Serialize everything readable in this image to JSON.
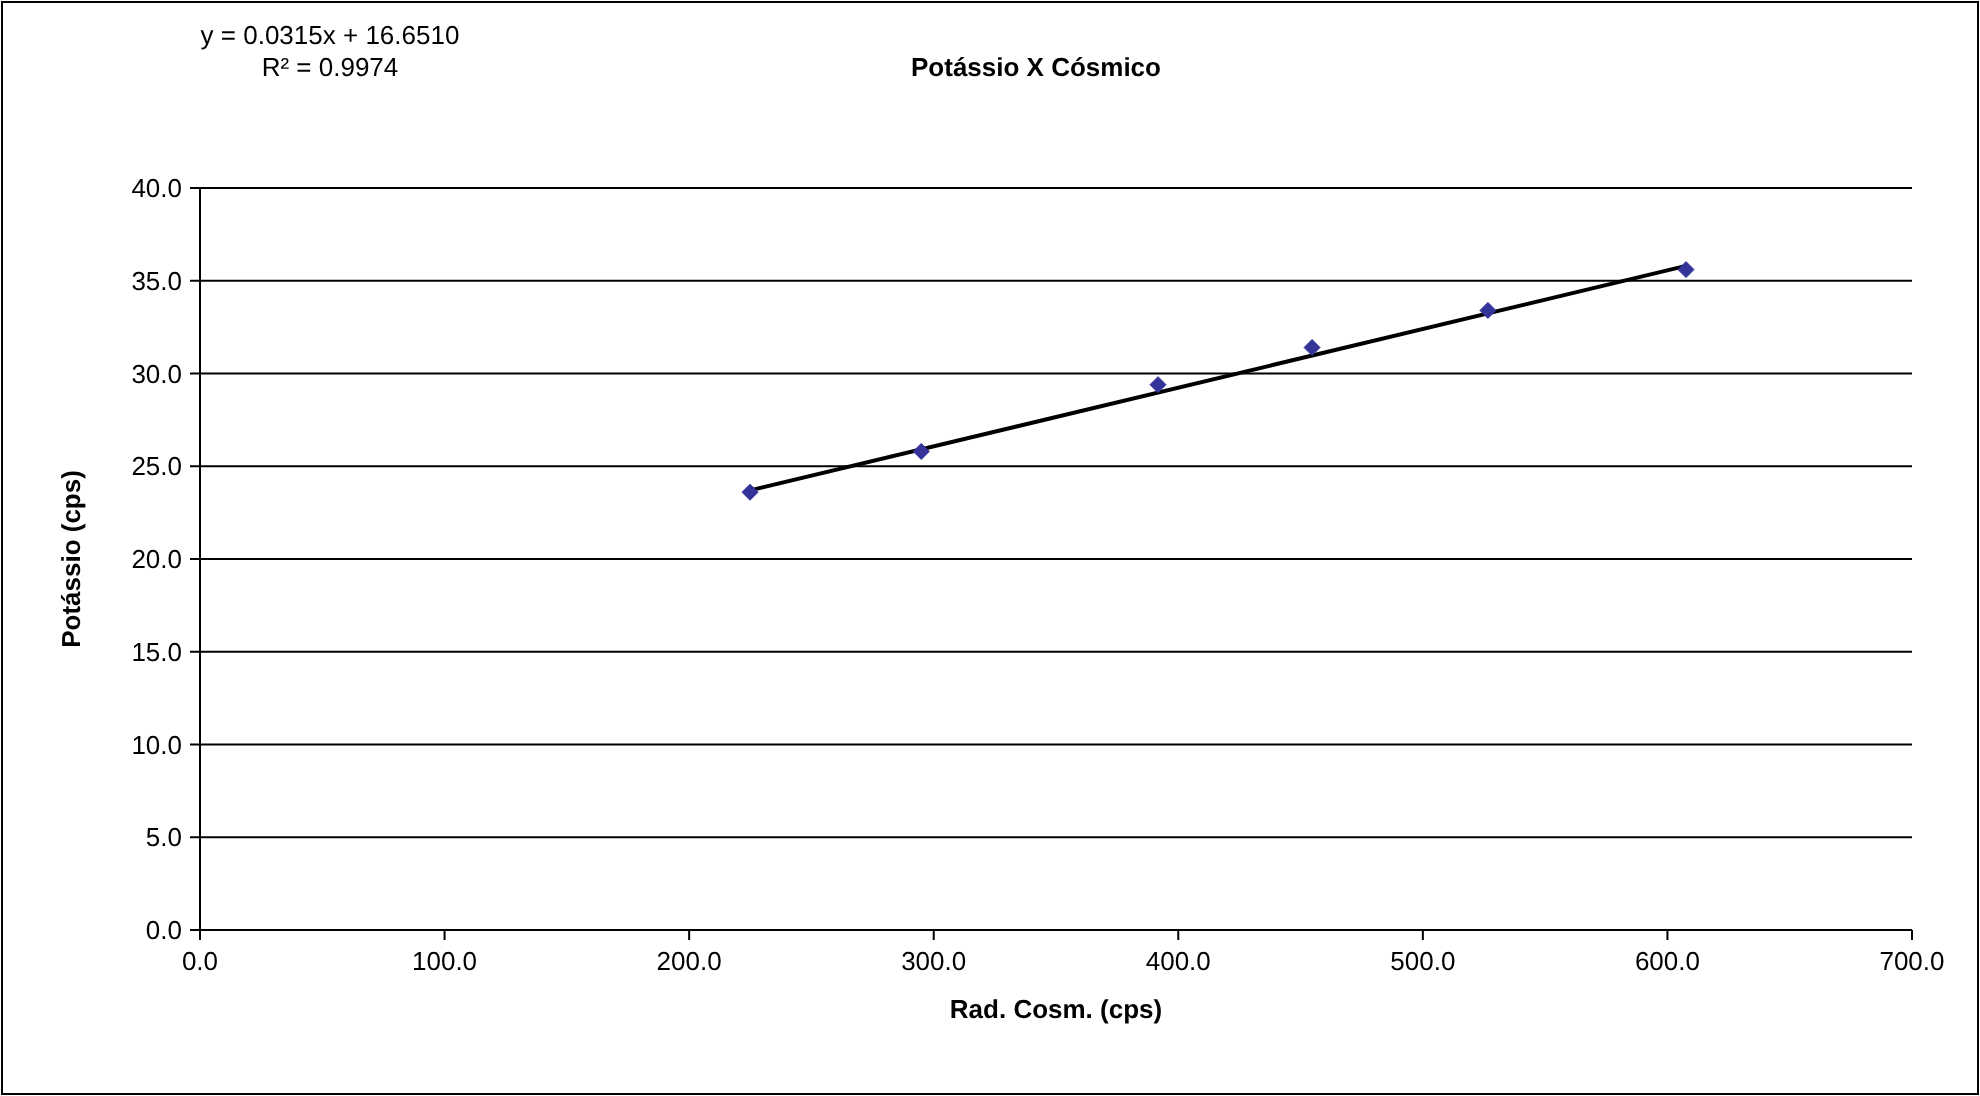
{
  "chart_data": {
    "type": "scatter",
    "title": "Potássio X Cósmico",
    "xlabel": "Rad. Cosm. (cps)",
    "ylabel": "Potássio (cps)",
    "annotations": [
      "y = 0.0315x + 16.6510",
      "R² = 0.9974"
    ],
    "series": [
      {
        "type": "scatter",
        "color": "#333399",
        "x": [
          224.9,
          294.9,
          391.7,
          454.7,
          526.6,
          607.6
        ],
        "values": [
          23.6,
          25.8,
          29.4,
          31.4,
          33.4,
          35.6
        ],
        "marker": "diamond"
      },
      {
        "type": "line",
        "color": "#000000",
        "x": [
          224.9,
          607.6
        ],
        "values": [
          23.7,
          35.8
        ],
        "marker": "none",
        "line_style": "solid"
      }
    ],
    "xlim": [
      0,
      700
    ],
    "xticks": [
      {
        "value": 0,
        "label": "0.0"
      },
      {
        "value": 100,
        "label": "100.0"
      },
      {
        "value": 200,
        "label": "200.0"
      },
      {
        "value": 300,
        "label": "300.0"
      },
      {
        "value": 400,
        "label": "400.0"
      },
      {
        "value": 500,
        "label": "500.0"
      },
      {
        "value": 600,
        "label": "600.0"
      },
      {
        "value": 700,
        "label": "700.0"
      }
    ],
    "ylim": [
      0,
      40
    ],
    "yticks": [
      {
        "value": 0,
        "label": "0.0"
      },
      {
        "value": 5,
        "label": "5.0"
      },
      {
        "value": 10,
        "label": "10.0"
      },
      {
        "value": 15,
        "label": "15.0"
      },
      {
        "value": 20,
        "label": "20.0"
      },
      {
        "value": 25,
        "label": "25.0"
      },
      {
        "value": 30,
        "label": "30.0"
      },
      {
        "value": 35,
        "label": "35.0"
      },
      {
        "value": 40,
        "label": "40.0"
      }
    ],
    "grid": "y"
  }
}
